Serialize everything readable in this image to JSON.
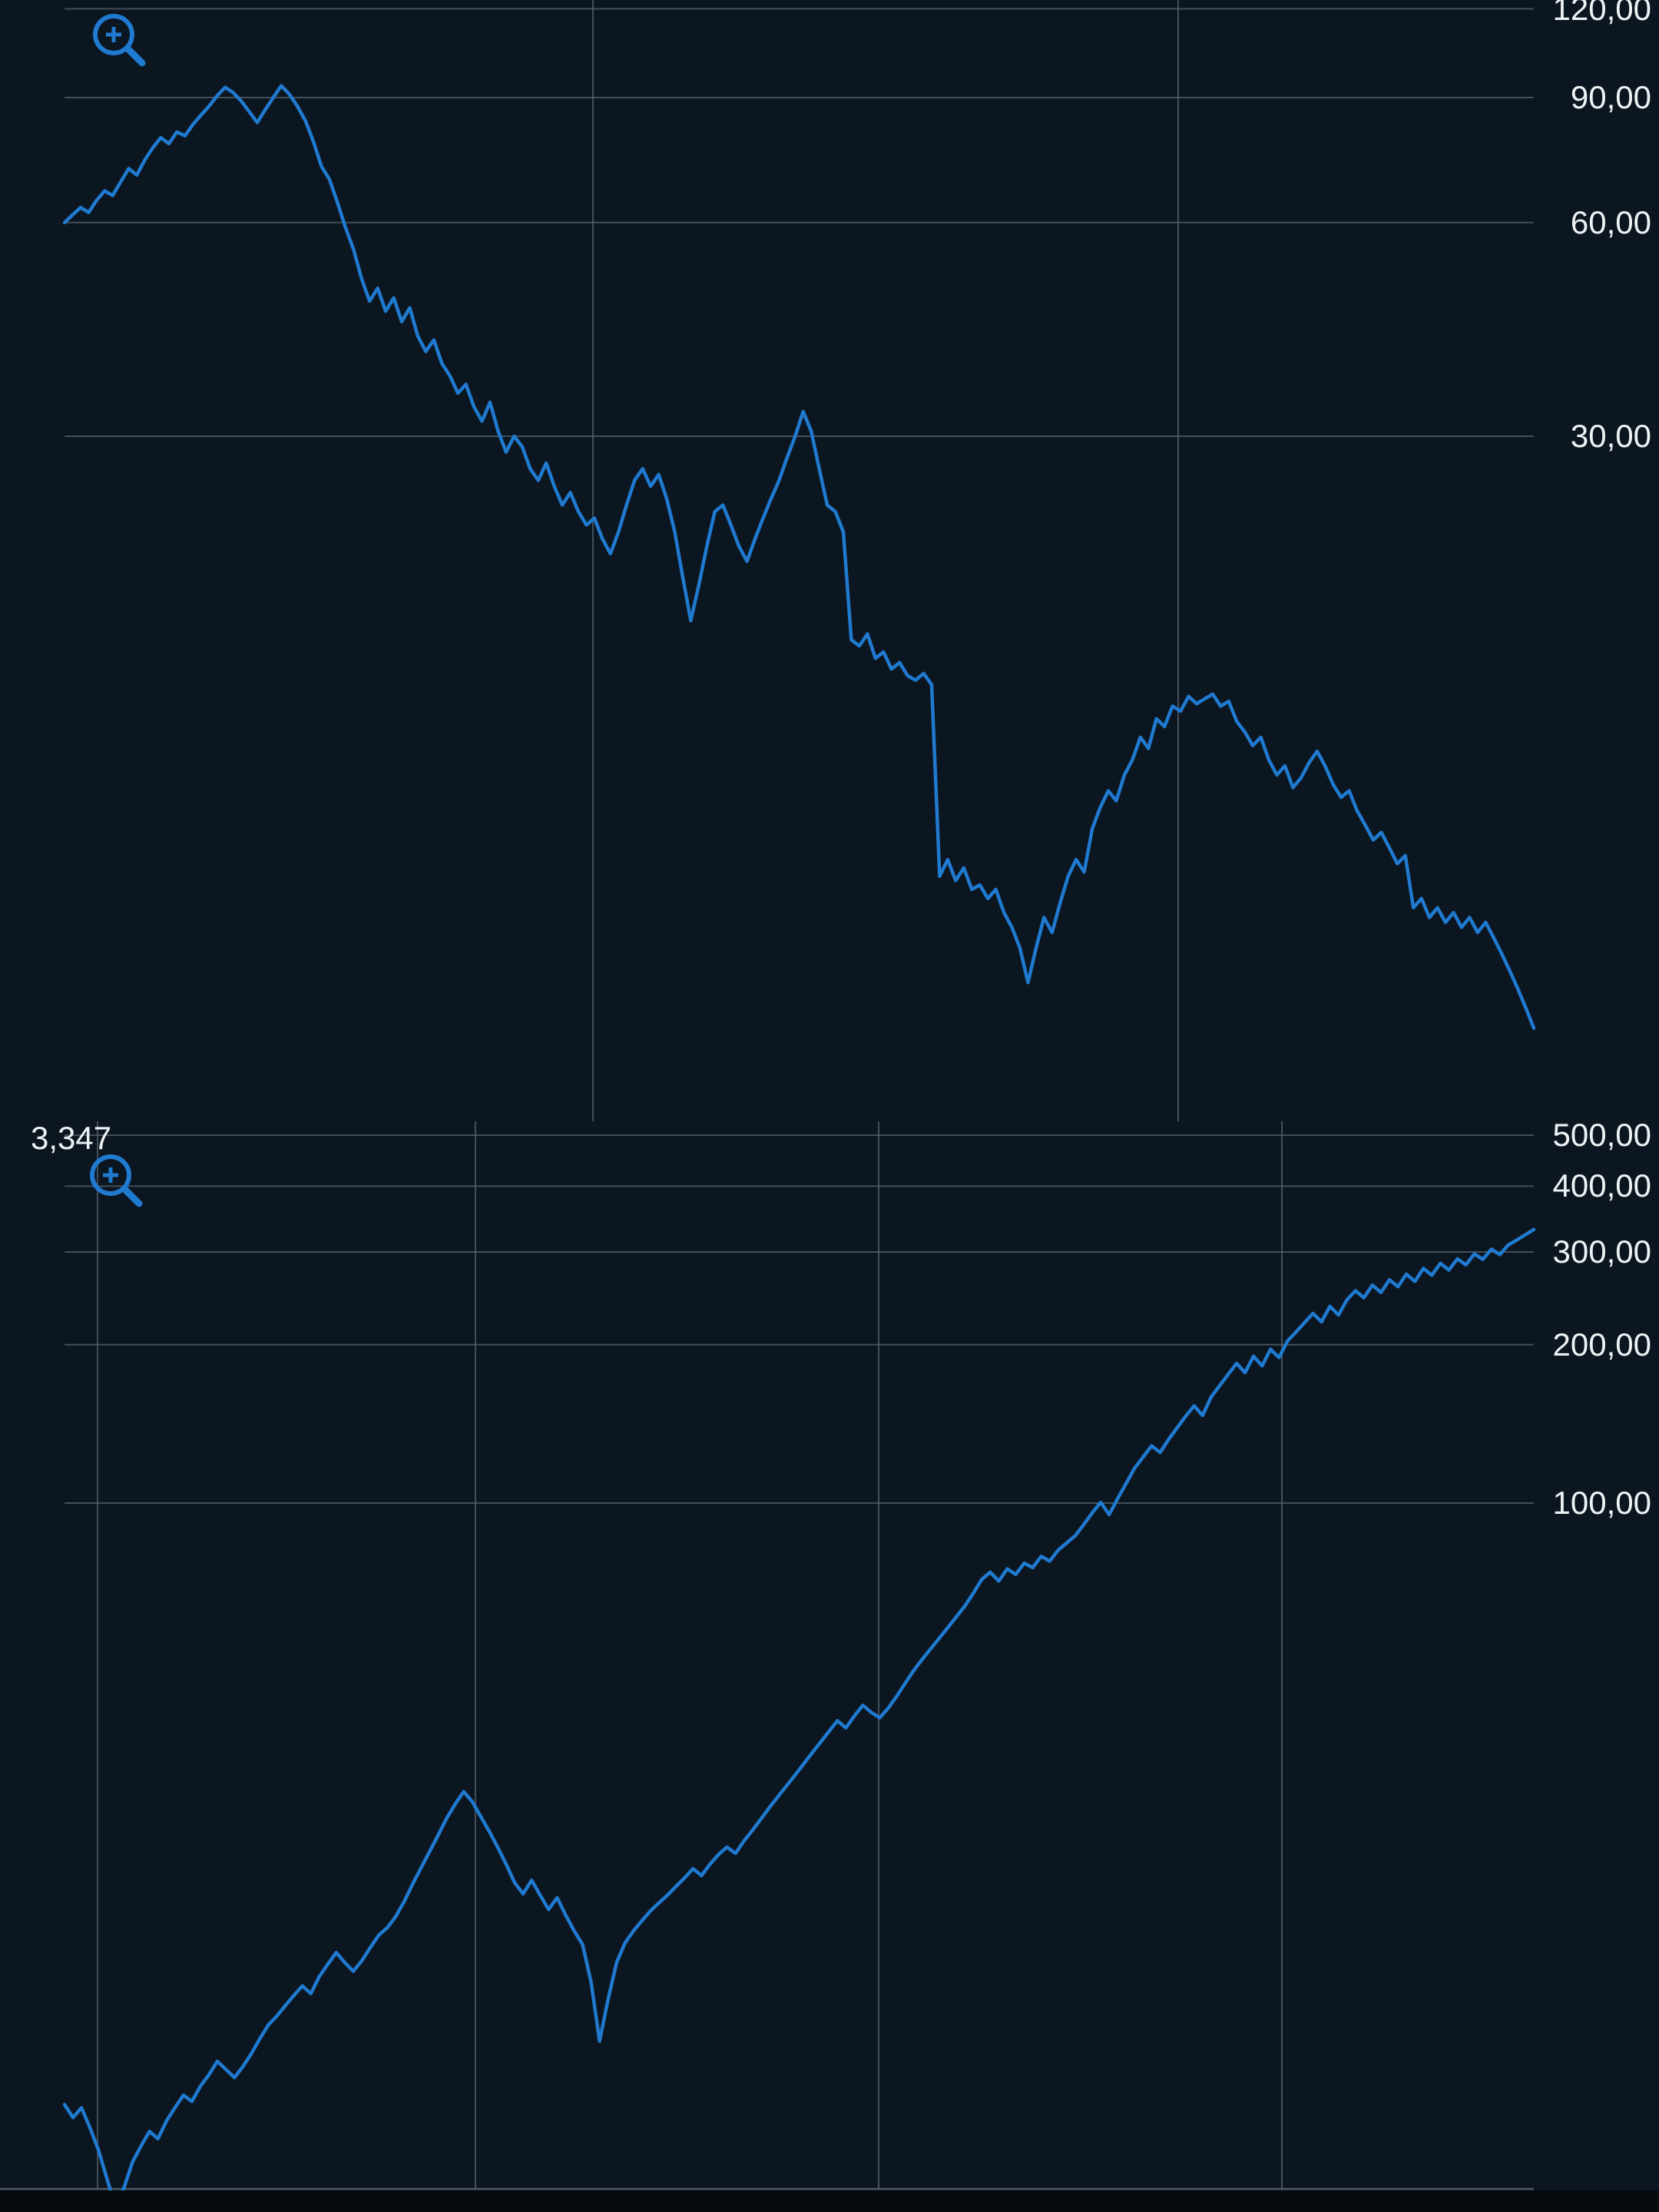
{
  "screen": {
    "background": "#0c1620",
    "grid_color": "#55636e",
    "line_color": "#1f7ad0",
    "label_color": "#eef2f5"
  },
  "chart_data": [
    {
      "name": "upper-price-chart",
      "type": "line",
      "title": "",
      "grid": true,
      "legend": "none",
      "y_axis": {
        "scale": "log",
        "side": "right",
        "ticks": [
          {
            "label": "120,00",
            "value": 120
          },
          {
            "label": "90,00",
            "value": 90
          },
          {
            "label": "60,00",
            "value": 60
          },
          {
            "label": "30,00",
            "value": 30
          }
        ],
        "approx_range": [
          4,
          125
        ]
      },
      "x_axis": {
        "labels_visible": false,
        "vertical_gridlines": 2
      },
      "overlays": {
        "zoom_icon": "zoom-in-icon"
      },
      "series": {
        "name": "price-declining",
        "color": "#1f7ad0",
        "values": [
          60,
          61.5,
          63,
          62,
          64.5,
          66.5,
          65.5,
          68.5,
          71.5,
          70,
          73.5,
          76.5,
          79,
          77.5,
          80.5,
          79.5,
          82.5,
          85,
          87.5,
          90.5,
          93,
          91.5,
          89,
          86,
          83,
          86.5,
          90,
          93.5,
          91,
          87.5,
          83.5,
          78,
          72,
          69,
          64,
          59,
          55,
          50,
          46.5,
          48.5,
          45,
          47,
          43.5,
          45.5,
          41.5,
          39.5,
          41,
          38,
          36.5,
          34.5,
          35.5,
          33,
          31.5,
          33.5,
          30.5,
          28.5,
          30,
          29,
          27,
          26,
          27.5,
          25.5,
          24,
          25,
          23.5,
          22.5,
          23,
          21.5,
          20.5,
          22,
          24,
          26,
          27,
          25.5,
          26.5,
          24.5,
          22,
          19,
          16.5,
          18.5,
          21,
          23.5,
          24,
          22.5,
          21,
          20,
          21.5,
          23,
          24.5,
          26,
          28,
          30,
          32.5,
          30.5,
          27,
          24,
          23.5,
          22,
          15.5,
          15.2,
          15.8,
          14.6,
          14.9,
          14.1,
          14.4,
          13.8,
          13.6,
          13.9,
          13.4,
          7.2,
          7.6,
          7.1,
          7.4,
          6.9,
          7,
          6.7,
          6.9,
          6.4,
          6.1,
          5.7,
          5.1,
          5.7,
          6.3,
          6,
          6.6,
          7.2,
          7.6,
          7.3,
          8.4,
          9,
          9.5,
          9.2,
          10,
          10.5,
          11.3,
          10.9,
          12,
          11.7,
          12.5,
          12.3,
          12.9,
          12.6,
          12.8,
          13,
          12.5,
          12.7,
          11.9,
          11.5,
          11,
          11.3,
          10.5,
          10,
          10.3,
          9.6,
          9.9,
          10.4,
          10.8,
          10.3,
          9.7,
          9.3,
          9.5,
          8.9,
          8.5,
          8.1,
          8.3,
          7.9,
          7.5,
          7.7,
          6.5,
          6.7,
          6.3,
          6.5,
          6.2,
          6.4,
          6.1,
          6.3,
          6,
          6.2,
          5.9,
          5.6,
          5.3,
          5,
          4.7,
          4.4
        ]
      }
    },
    {
      "name": "lower-price-chart",
      "type": "line",
      "title": "",
      "grid": true,
      "legend": "none",
      "corner_label": "3,347",
      "y_axis": {
        "scale": "log",
        "side": "right",
        "ticks": [
          {
            "label": "500,00",
            "value": 500
          },
          {
            "label": "400,00",
            "value": 400
          },
          {
            "label": "300,00",
            "value": 300
          },
          {
            "label": "200,00",
            "value": 200
          },
          {
            "label": "100,00",
            "value": 100
          }
        ],
        "approx_range": [
          4,
          500
        ]
      },
      "x_axis": {
        "labels_visible": false,
        "vertical_gridlines": 4
      },
      "overlays": {
        "zoom_icon": "zoom-in-icon"
      },
      "series": {
        "name": "price-rising",
        "color": "#1f7ad0",
        "values": [
          7.2,
          6.8,
          7.1,
          6.5,
          5.9,
          5.2,
          4.6,
          5.0,
          5.6,
          6.0,
          6.4,
          6.2,
          6.7,
          7.1,
          7.5,
          7.3,
          7.8,
          8.2,
          8.7,
          8.4,
          8.1,
          8.5,
          9.0,
          9.6,
          10.2,
          10.6,
          11.1,
          11.6,
          12.1,
          11.7,
          12.6,
          13.3,
          14.0,
          13.4,
          12.9,
          13.5,
          14.3,
          15.1,
          15.6,
          16.4,
          17.5,
          18.9,
          20.3,
          21.8,
          23.4,
          25.2,
          26.8,
          28.3,
          27.1,
          25.4,
          23.8,
          22.2,
          20.6,
          19.0,
          18.1,
          19.2,
          18.0,
          16.9,
          17.8,
          16.5,
          15.4,
          14.5,
          12.3,
          9.5,
          11.4,
          13.4,
          14.6,
          15.4,
          16.1,
          16.8,
          17.4,
          18.0,
          18.7,
          19.4,
          20.2,
          19.6,
          20.6,
          21.5,
          22.2,
          21.6,
          22.8,
          23.9,
          25.1,
          26.4,
          27.7,
          29.0,
          30.4,
          31.9,
          33.5,
          35.1,
          36.8,
          38.6,
          37.4,
          39.4,
          41.3,
          40.0,
          39.1,
          40.8,
          43.0,
          45.5,
          48.1,
          50.5,
          52.9,
          55.4,
          58.0,
          60.8,
          63.7,
          67.4,
          71.6,
          73.9,
          71.1,
          75.0,
          73.2,
          76.9,
          75.4,
          79.2,
          77.6,
          81.4,
          84.0,
          86.7,
          91.0,
          95.8,
          100.3,
          95.1,
          102.0,
          109.0,
          116.5,
          122.3,
          128.5,
          124.8,
          132.1,
          139.0,
          146.2,
          153.0,
          146.7,
          159.0,
          167.1,
          175.5,
          184.3,
          176.9,
          190.1,
          182.2,
          196.0,
          189.0,
          203.2,
          211.4,
          220.2,
          229.3,
          221.0,
          236.5,
          227.7,
          243.4,
          253.2,
          245.6,
          259.5,
          251.3,
          265.7,
          257.8,
          272.3,
          263.7,
          279.1,
          271.0,
          285.5,
          277.2,
          291.1,
          283.6,
          297.3,
          290.4,
          303.7,
          296.5,
          309.3,
          316.1,
          323.5,
          331.0
        ]
      }
    }
  ]
}
